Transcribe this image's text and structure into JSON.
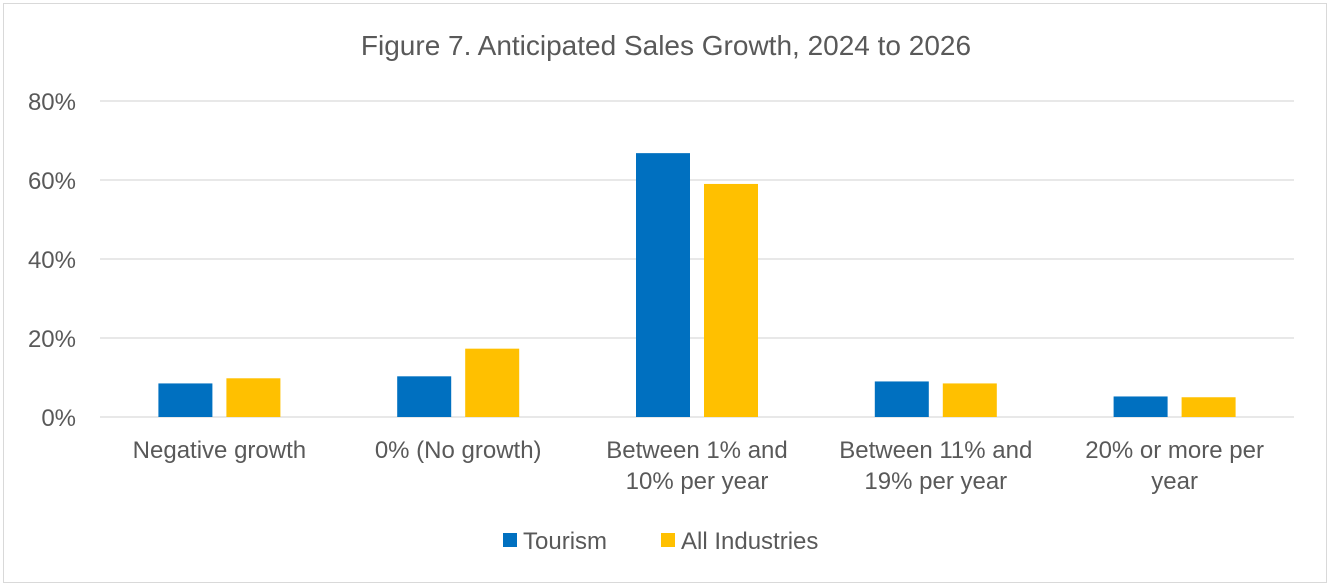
{
  "chart_data": {
    "type": "bar",
    "title": "Figure 7. Anticipated Sales Growth, 2024 to 2026",
    "categories": [
      [
        "Negative growth"
      ],
      [
        "0% (No growth)"
      ],
      [
        "Between 1% and",
        "10% per year"
      ],
      [
        "Between 11% and",
        "19% per year"
      ],
      [
        "20% or more per",
        "year"
      ]
    ],
    "series": [
      {
        "name": "Tourism",
        "color": "#0070c0",
        "values": [
          8.5,
          10.3,
          66.8,
          9.0,
          5.2
        ]
      },
      {
        "name": "All Industries",
        "color": "#ffc000",
        "values": [
          9.8,
          17.3,
          59.0,
          8.5,
          5.0
        ]
      }
    ],
    "ylim": [
      0,
      80
    ],
    "yticks": [
      "0%",
      "20%",
      "40%",
      "60%",
      "80%"
    ],
    "ytick_values": [
      0,
      20,
      40,
      60,
      80
    ],
    "grid": true,
    "legend_position": "bottom"
  }
}
